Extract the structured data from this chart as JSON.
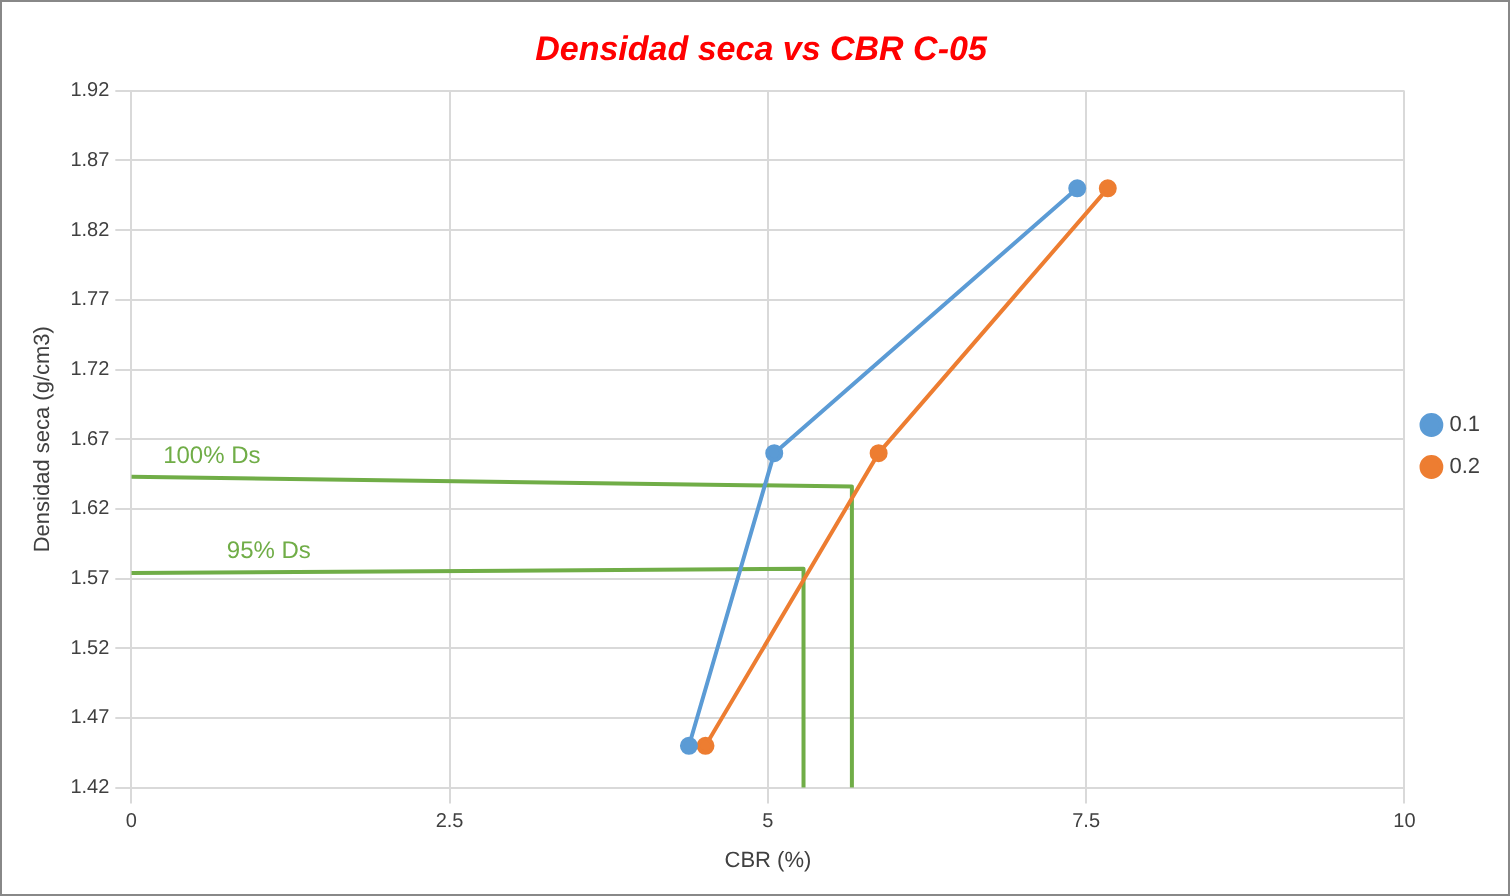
{
  "chart_data": {
    "type": "line",
    "title": "Densidad seca vs CBR C-05",
    "xlabel": "CBR (%)",
    "ylabel": "Densidad seca (g/cm3)",
    "xlim": [
      0,
      10
    ],
    "xticks": [
      0,
      2.5,
      5,
      7.5,
      10
    ],
    "ylim": [
      1.42,
      1.92
    ],
    "yticks": [
      1.42,
      1.47,
      1.52,
      1.57,
      1.62,
      1.67,
      1.72,
      1.77,
      1.82,
      1.87,
      1.92
    ],
    "grid": true,
    "legend": "right",
    "marker": "circle",
    "line_style": "solid",
    "series": [
      {
        "name": "0.1",
        "color": "#5b9bd5",
        "x": [
          4.38,
          5.05,
          7.43
        ],
        "values": [
          1.45,
          1.66,
          1.85
        ]
      },
      {
        "name": "0.2",
        "color": "#ed7d31",
        "x": [
          4.51,
          5.87,
          7.67
        ],
        "values": [
          1.45,
          1.66,
          1.85
        ]
      },
      {
        "type": "line",
        "color": "#70ad47",
        "marker": "none",
        "x": [
          0,
          5.66,
          5.66
        ],
        "values": [
          1.643,
          1.636,
          1.42
        ]
      },
      {
        "type": "line",
        "color": "#70ad47",
        "marker": "none",
        "x": [
          0,
          5.28,
          5.28
        ],
        "values": [
          1.574,
          1.577,
          1.42
        ]
      }
    ],
    "annotations": [
      {
        "text": "100% Ds",
        "x": 0.25,
        "y": 1.643
      },
      {
        "text": "95% Ds",
        "x": 0.75,
        "y": 1.575
      }
    ]
  }
}
